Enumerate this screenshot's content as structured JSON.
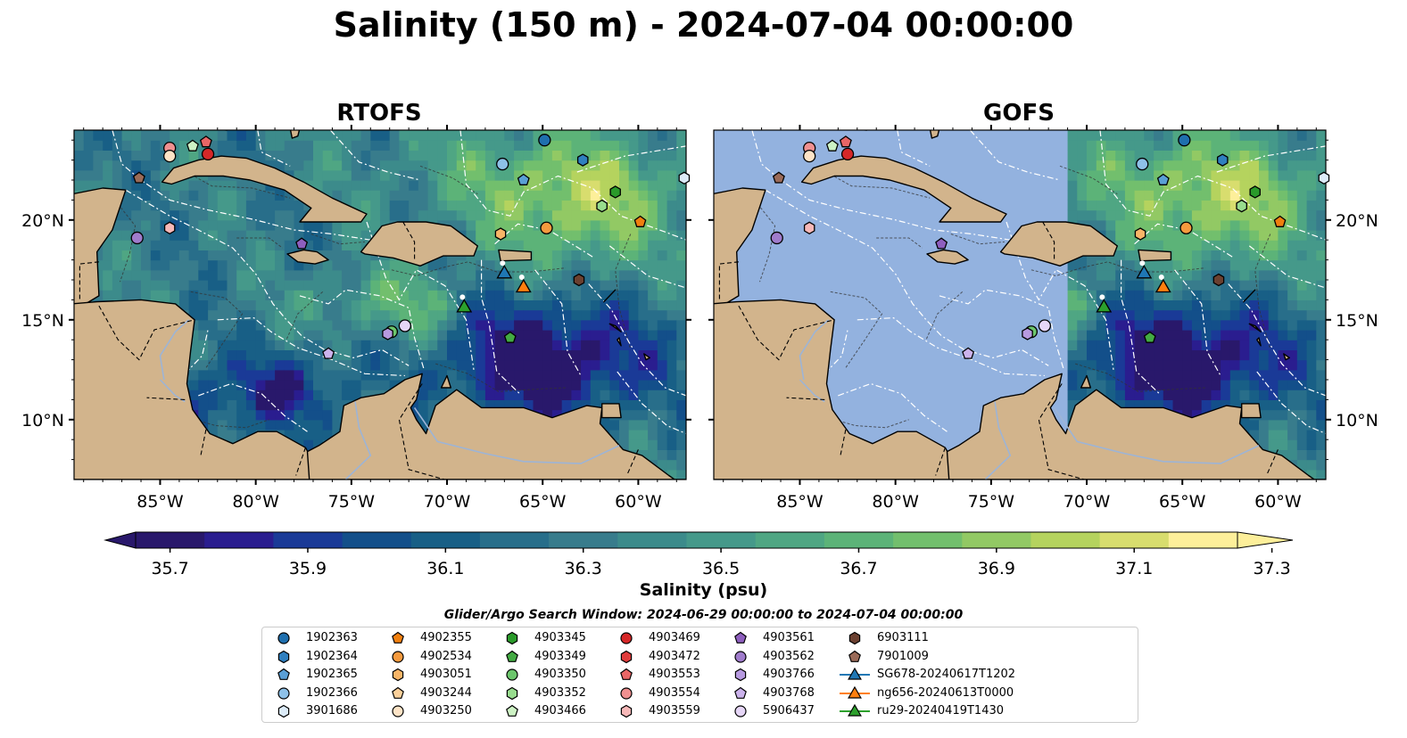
{
  "title": "Salinity (150 m) - 2024-07-04 00:00:00",
  "panels": [
    {
      "title": "RTOFS",
      "data_extent": "full"
    },
    {
      "title": "GOFS",
      "data_extent": "east-of-71W"
    }
  ],
  "map": {
    "lon_range": [
      -89.5,
      -57.5
    ],
    "lat_range": [
      7,
      24.5
    ],
    "lon_ticks": [
      "85°W",
      "80°W",
      "75°W",
      "70°W",
      "65°W",
      "60°W"
    ],
    "lon_tick_values": [
      -85,
      -80,
      -75,
      -70,
      -65,
      -60
    ],
    "lat_ticks": [
      "10°N",
      "15°N",
      "20°N"
    ],
    "lat_tick_values": [
      10,
      15,
      20
    ],
    "colors": {
      "land": "#d2b48c",
      "no_data": "#93b2df",
      "borders": "#000000",
      "eez_lines": "#ffffff"
    }
  },
  "colorbar": {
    "label": "Salinity (psu)",
    "min": 35.7,
    "max": 37.3,
    "step": 0.1,
    "ticks": [
      "35.7",
      "35.9",
      "36.1",
      "36.3",
      "36.5",
      "36.7",
      "36.9",
      "37.1",
      "37.3"
    ],
    "colormap": "haline",
    "extend": "both"
  },
  "search_window": "Glider/Argo Search Window: 2024-06-29 00:00:00 to 2024-07-04 00:00:00",
  "legend": [
    {
      "label": "1902363",
      "marker": "circle",
      "color": "#1f6fae"
    },
    {
      "label": "1902364",
      "marker": "hexagon",
      "color": "#2f7fbf"
    },
    {
      "label": "1902365",
      "marker": "pentagon",
      "color": "#5a9fd6"
    },
    {
      "label": "1902366",
      "marker": "circle",
      "color": "#8ec1e8"
    },
    {
      "label": "3901686",
      "marker": "hexagon",
      "color": "#dcebf8"
    },
    {
      "label": "4902355",
      "marker": "pentagon",
      "color": "#f07f0e"
    },
    {
      "label": "4902534",
      "marker": "circle",
      "color": "#f59a3e"
    },
    {
      "label": "4903051",
      "marker": "hexagon",
      "color": "#f8b567"
    },
    {
      "label": "4903244",
      "marker": "pentagon",
      "color": "#fbd09a"
    },
    {
      "label": "4903250",
      "marker": "circle",
      "color": "#fde3c6"
    },
    {
      "label": "4903345",
      "marker": "hexagon",
      "color": "#2a9a2a"
    },
    {
      "label": "4903349",
      "marker": "pentagon",
      "color": "#43aa43"
    },
    {
      "label": "4903350",
      "marker": "circle",
      "color": "#6cc66c"
    },
    {
      "label": "4903352",
      "marker": "hexagon",
      "color": "#98dc8e"
    },
    {
      "label": "4903466",
      "marker": "pentagon",
      "color": "#cdf2c4"
    },
    {
      "label": "4903469",
      "marker": "circle",
      "color": "#d62728"
    },
    {
      "label": "4903472",
      "marker": "hexagon",
      "color": "#e03c3c"
    },
    {
      "label": "4903553",
      "marker": "pentagon",
      "color": "#e86666"
    },
    {
      "label": "4903554",
      "marker": "circle",
      "color": "#f09090"
    },
    {
      "label": "4903559",
      "marker": "hexagon",
      "color": "#f7b8b8"
    },
    {
      "label": "4903561",
      "marker": "pentagon",
      "color": "#8e5fbe"
    },
    {
      "label": "4903562",
      "marker": "circle",
      "color": "#a07ccc"
    },
    {
      "label": "4903766",
      "marker": "hexagon",
      "color": "#b79ae0"
    },
    {
      "label": "4903768",
      "marker": "pentagon",
      "color": "#ccb3ec"
    },
    {
      "label": "5906437",
      "marker": "circle",
      "color": "#e6d6f7"
    },
    {
      "label": "6903111",
      "marker": "hexagon",
      "color": "#6b4030"
    },
    {
      "label": "7901009",
      "marker": "pentagon",
      "color": "#9a6a58"
    },
    {
      "label": "SG678-20240617T1202",
      "marker": "triangle-line",
      "color": "#1f77b4"
    },
    {
      "label": "ng656-20240613T0000",
      "marker": "triangle-line",
      "color": "#ff7f0e"
    },
    {
      "label": "ru29-20240419T1430",
      "marker": "triangle-line",
      "color": "#2ca02c"
    }
  ],
  "floats": [
    {
      "id": "4903554",
      "lon": -84.5,
      "lat": 23.6
    },
    {
      "id": "4903250",
      "lon": -84.5,
      "lat": 23.2
    },
    {
      "id": "4903466",
      "lon": -83.3,
      "lat": 23.7
    },
    {
      "id": "4903553",
      "lon": -82.6,
      "lat": 23.9
    },
    {
      "id": "4903469",
      "lon": -82.5,
      "lat": 23.3
    },
    {
      "id": "7901009",
      "lon": -86.1,
      "lat": 22.1
    },
    {
      "id": "4903559",
      "lon": -84.5,
      "lat": 19.6
    },
    {
      "id": "4903562",
      "lon": -86.2,
      "lat": 19.1
    },
    {
      "id": "4903561",
      "lon": -77.6,
      "lat": 18.8
    },
    {
      "id": "1902363",
      "lon": -64.9,
      "lat": 24.0
    },
    {
      "id": "1902366",
      "lon": -67.1,
      "lat": 22.8
    },
    {
      "id": "1902364",
      "lon": -62.9,
      "lat": 23.0
    },
    {
      "id": "1902365",
      "lon": -66.0,
      "lat": 22.0
    },
    {
      "id": "3901686",
      "lon": -57.6,
      "lat": 22.1
    },
    {
      "id": "4903345",
      "lon": -61.2,
      "lat": 21.4
    },
    {
      "id": "4903352",
      "lon": -61.9,
      "lat": 20.7
    },
    {
      "id": "4903051",
      "lon": -67.2,
      "lat": 19.3
    },
    {
      "id": "4902534",
      "lon": -64.8,
      "lat": 19.6
    },
    {
      "id": "4902355",
      "lon": -59.9,
      "lat": 19.9
    },
    {
      "id": "6903111",
      "lon": -63.1,
      "lat": 17.0
    },
    {
      "id": "5906437",
      "lon": -72.2,
      "lat": 14.7
    },
    {
      "id": "4903350",
      "lon": -72.9,
      "lat": 14.4
    },
    {
      "id": "4903766",
      "lon": -73.1,
      "lat": 14.3
    },
    {
      "id": "4903768",
      "lon": -76.2,
      "lat": 13.3
    },
    {
      "id": "4903349",
      "lon": -66.7,
      "lat": 14.1
    }
  ],
  "gliders": [
    {
      "id": "SG678-20240617T1202",
      "lon": -67.0,
      "lat": 17.3
    },
    {
      "id": "ng656-20240613T0000",
      "lon": -66.0,
      "lat": 16.6
    },
    {
      "id": "ru29-20240419T1430",
      "lon": -69.1,
      "lat": 15.6
    }
  ]
}
